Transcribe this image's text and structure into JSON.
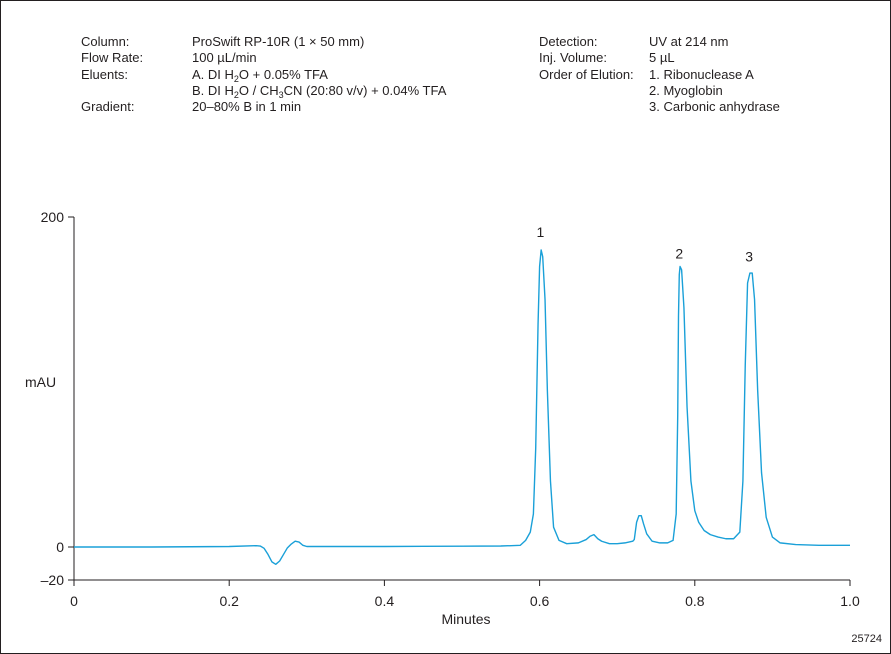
{
  "conditions_left": [
    {
      "label": "Column:",
      "value_parts": [
        {
          "t": "ProSwift RP-10R (1 × 50 mm)"
        }
      ]
    },
    {
      "label": "Flow Rate:",
      "value_parts": [
        {
          "t": "100 µL/min"
        }
      ]
    },
    {
      "label": "Eluents:",
      "value_parts": [
        {
          "t": "A. DI H"
        },
        {
          "sub": "2"
        },
        {
          "t": "O + 0.05% TFA"
        }
      ]
    },
    {
      "label": "",
      "value_parts": [
        {
          "t": "B. DI H"
        },
        {
          "sub": "2"
        },
        {
          "t": "O / CH"
        },
        {
          "sub": "3"
        },
        {
          "t": "CN (20:80 v/v) + 0.04% TFA"
        }
      ]
    },
    {
      "label": "Gradient:",
      "value_parts": [
        {
          "t": "20–80% B in 1 min"
        }
      ]
    }
  ],
  "conditions_right": [
    {
      "label": "Detection:",
      "value": "UV at 214 nm"
    },
    {
      "label": "Inj. Volume:",
      "value": "5 µL"
    },
    {
      "label": "Order of Elution:",
      "value": "1. Ribonuclease A"
    },
    {
      "label": "",
      "value": "2. Myoglobin"
    },
    {
      "label": "",
      "value": "3. Carbonic anhydrase"
    }
  ],
  "figure_id": "25724",
  "chart_data": {
    "type": "line",
    "xlabel": "Minutes",
    "ylabel": "mAU",
    "xlim": [
      0,
      1.0
    ],
    "ylim": [
      -20,
      200
    ],
    "xticks": [
      0,
      0.2,
      0.4,
      0.6,
      0.8,
      1.0
    ],
    "xtick_labels": [
      "0",
      "0.2",
      "0.4",
      "0.6",
      "0.8",
      "1.0"
    ],
    "yticks": [
      -20,
      0,
      200
    ],
    "ytick_labels": [
      "–20",
      "0",
      "200"
    ],
    "grid": false,
    "line_color": "#1aa0d8",
    "series": [
      {
        "points": [
          [
            0.0,
            0.0
          ],
          [
            0.1,
            0.0
          ],
          [
            0.2,
            0.3
          ],
          [
            0.235,
            0.8
          ],
          [
            0.24,
            0.6
          ],
          [
            0.245,
            -0.8
          ],
          [
            0.25,
            -4.5
          ],
          [
            0.255,
            -9.0
          ],
          [
            0.26,
            -10.5
          ],
          [
            0.265,
            -8.5
          ],
          [
            0.27,
            -4.5
          ],
          [
            0.275,
            -0.5
          ],
          [
            0.28,
            1.8
          ],
          [
            0.285,
            3.5
          ],
          [
            0.29,
            3.0
          ],
          [
            0.295,
            1.0
          ],
          [
            0.3,
            0.3
          ],
          [
            0.35,
            0.3
          ],
          [
            0.4,
            0.3
          ],
          [
            0.45,
            0.4
          ],
          [
            0.5,
            0.5
          ],
          [
            0.55,
            0.6
          ],
          [
            0.575,
            1.0
          ],
          [
            0.582,
            4.0
          ],
          [
            0.588,
            9.0
          ],
          [
            0.592,
            20.0
          ],
          [
            0.595,
            60.0
          ],
          [
            0.598,
            135.0
          ],
          [
            0.6,
            170.0
          ],
          [
            0.602,
            180.0
          ],
          [
            0.604,
            176.0
          ],
          [
            0.607,
            150.0
          ],
          [
            0.61,
            95.0
          ],
          [
            0.614,
            40.0
          ],
          [
            0.618,
            12.0
          ],
          [
            0.625,
            4.0
          ],
          [
            0.635,
            2.0
          ],
          [
            0.65,
            2.5
          ],
          [
            0.66,
            4.5
          ],
          [
            0.665,
            6.5
          ],
          [
            0.67,
            7.5
          ],
          [
            0.675,
            5.0
          ],
          [
            0.68,
            3.5
          ],
          [
            0.69,
            2.0
          ],
          [
            0.7,
            2.0
          ],
          [
            0.71,
            2.5
          ],
          [
            0.715,
            3.0
          ],
          [
            0.72,
            3.5
          ],
          [
            0.722,
            4.5
          ],
          [
            0.725,
            15.0
          ],
          [
            0.728,
            19.0
          ],
          [
            0.731,
            19.0
          ],
          [
            0.734,
            14.0
          ],
          [
            0.738,
            8.0
          ],
          [
            0.745,
            3.5
          ],
          [
            0.755,
            2.5
          ],
          [
            0.765,
            2.5
          ],
          [
            0.772,
            4.0
          ],
          [
            0.776,
            20.0
          ],
          [
            0.778,
            80.0
          ],
          [
            0.779,
            140.0
          ],
          [
            0.78,
            165.0
          ],
          [
            0.781,
            170.0
          ],
          [
            0.783,
            168.0
          ],
          [
            0.786,
            145.0
          ],
          [
            0.79,
            85.0
          ],
          [
            0.795,
            40.0
          ],
          [
            0.8,
            22.0
          ],
          [
            0.805,
            15.0
          ],
          [
            0.812,
            10.0
          ],
          [
            0.82,
            7.5
          ],
          [
            0.83,
            6.0
          ],
          [
            0.84,
            5.0
          ],
          [
            0.85,
            5.0
          ],
          [
            0.858,
            9.0
          ],
          [
            0.862,
            40.0
          ],
          [
            0.865,
            110.0
          ],
          [
            0.868,
            160.0
          ],
          [
            0.871,
            166.0
          ],
          [
            0.874,
            166.0
          ],
          [
            0.877,
            150.0
          ],
          [
            0.881,
            95.0
          ],
          [
            0.886,
            45.0
          ],
          [
            0.892,
            18.0
          ],
          [
            0.9,
            6.0
          ],
          [
            0.91,
            2.5
          ],
          [
            0.93,
            1.5
          ],
          [
            0.96,
            1.0
          ],
          [
            1.0,
            1.0
          ]
        ]
      }
    ],
    "annotations": [
      {
        "text": "1",
        "x": 0.601,
        "y": 188
      },
      {
        "text": "2",
        "x": 0.78,
        "y": 175
      },
      {
        "text": "3",
        "x": 0.87,
        "y": 173
      }
    ]
  }
}
